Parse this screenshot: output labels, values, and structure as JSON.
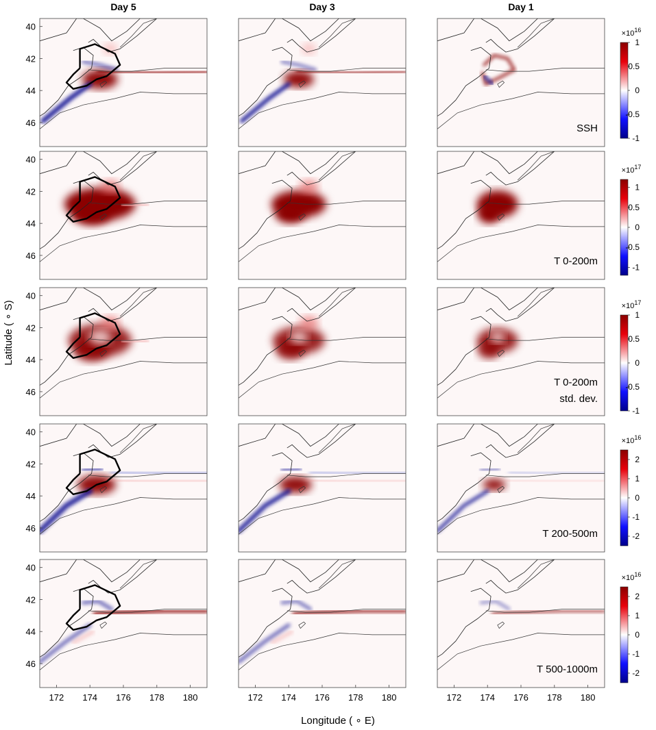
{
  "chart_data": {
    "type": "heatmap",
    "columns": [
      "Day 5",
      "Day 3",
      "Day 1"
    ],
    "xlabel": "Longitude ( ∘ E)",
    "ylabel": "Latitude ( ∘ S)",
    "xticks": [
      172,
      174,
      176,
      178,
      180
    ],
    "yticks": [
      40,
      42,
      44,
      46
    ],
    "xlim": [
      171,
      181
    ],
    "ylim": [
      39.5,
      47.5
    ],
    "colors": {
      "positive": "#8b0000",
      "negative": "#00008b",
      "neutral": "#ffffff"
    },
    "rows": [
      {
        "label_lines": [
          "SSH"
        ],
        "exponent_base": "×10",
        "exponent": "16",
        "cb_min": -1,
        "cb_max": 1,
        "cb_ticks": [
          1,
          0.5,
          0,
          -0.5,
          -1
        ],
        "cb_tick_labels": [
          "1",
          "0.5",
          "0",
          "-0.5",
          "-1"
        ]
      },
      {
        "label_lines": [
          "T 0-200m"
        ],
        "exponent_base": "×10",
        "exponent": "17",
        "cb_min": -1.2,
        "cb_max": 1.2,
        "cb_ticks": [
          1,
          0.5,
          0,
          -0.5,
          -1
        ],
        "cb_tick_labels": [
          "1",
          "0.5",
          "0",
          "-0.5",
          "-1"
        ]
      },
      {
        "label_lines": [
          "T 0-200m",
          "std. dev."
        ],
        "exponent_base": "×10",
        "exponent": "17",
        "cb_min": -1,
        "cb_max": 1,
        "cb_ticks": [
          1,
          0.5,
          0,
          -0.5,
          -1
        ],
        "cb_tick_labels": [
          "1",
          "0.5",
          "0",
          "-0.5",
          "-1"
        ]
      },
      {
        "label_lines": [
          "T 200-500m"
        ],
        "exponent_base": "×10",
        "exponent": "16",
        "cb_min": -2.5,
        "cb_max": 2.5,
        "cb_ticks": [
          2,
          1,
          0,
          -1,
          -2
        ],
        "cb_tick_labels": [
          "2",
          "1",
          "0",
          "-1",
          "-2"
        ]
      },
      {
        "label_lines": [
          "T 500-1000m"
        ],
        "exponent_base": "×10",
        "exponent": "16",
        "cb_min": -2.5,
        "cb_max": 2.5,
        "cb_ticks": [
          2,
          1,
          0,
          -1,
          -2
        ],
        "cb_tick_labels": [
          "2",
          "1",
          "0",
          "-1",
          "-2"
        ]
      }
    ]
  }
}
